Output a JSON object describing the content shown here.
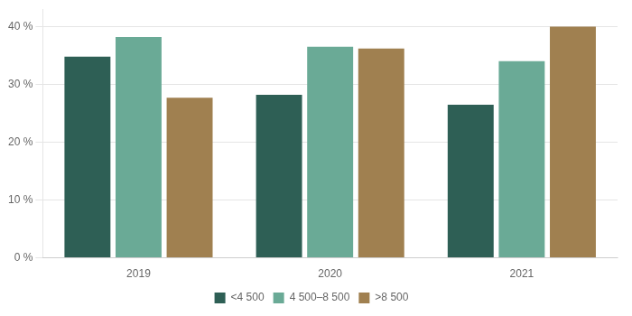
{
  "chart_data": {
    "type": "bar",
    "categories": [
      "2019",
      "2020",
      "2021"
    ],
    "series": [
      {
        "name": "<4 500",
        "color": "#2e5f55",
        "values": [
          0.348,
          0.282,
          0.265
        ]
      },
      {
        "name": "4 500–8 500",
        "color": "#6aaa96",
        "values": [
          0.382,
          0.365,
          0.34
        ]
      },
      {
        "name": ">8 500",
        "color": "#a08050",
        "values": [
          0.277,
          0.362,
          0.4
        ]
      }
    ],
    "ylim": [
      0,
      0.43
    ],
    "yticks": [
      {
        "value": 0.0,
        "label": "0 %"
      },
      {
        "value": 0.1,
        "label": "10 %"
      },
      {
        "value": 0.2,
        "label": "20 %"
      },
      {
        "value": 0.3,
        "label": "30 %"
      },
      {
        "value": 0.4,
        "label": "40 %"
      }
    ],
    "grid": true,
    "legend": "bottom"
  }
}
